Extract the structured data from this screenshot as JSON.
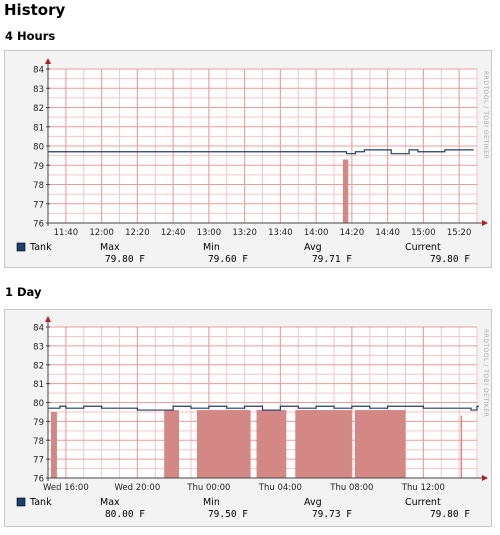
{
  "page": {
    "title": "History"
  },
  "graphs": [
    {
      "title": "4 Hours",
      "watermark": "RRDTOOL / TOBI OETIKER",
      "legend": {
        "series": "Tank",
        "color": "#1c3f6e"
      },
      "stats": {
        "max": {
          "label": "Max",
          "value": "79.80 F"
        },
        "min": {
          "label": "Min",
          "value": "79.60 F"
        },
        "avg": {
          "label": "Avg",
          "value": "79.71 F"
        },
        "current": {
          "label": "Current",
          "value": "79.80 F"
        }
      }
    },
    {
      "title": "1 Day",
      "watermark": "RRDTOOL / TOBI OETIKER",
      "legend": {
        "series": "Tank",
        "color": "#1c3f6e"
      },
      "stats": {
        "max": {
          "label": "Max",
          "value": "80.00 F"
        },
        "min": {
          "label": "Min",
          "value": "79.50 F"
        },
        "avg": {
          "label": "Avg",
          "value": "79.73 F"
        },
        "current": {
          "label": "Current",
          "value": "79.80 F"
        }
      }
    }
  ],
  "chart_data": [
    {
      "type": "line",
      "ylim": [
        76,
        84
      ],
      "y_ticks": [
        76,
        77,
        78,
        79,
        80,
        81,
        82,
        83,
        84
      ],
      "x_ticks": [
        "11:40",
        "12:00",
        "12:20",
        "12:40",
        "13:00",
        "13:20",
        "13:40",
        "14:00",
        "14:20",
        "14:40",
        "15:00",
        "15:20"
      ],
      "grid": true,
      "series": [
        {
          "name": "Tank",
          "color": "#1c3f6e",
          "x": [
            "11:30",
            "14:12",
            "14:17",
            "14:22",
            "14:27",
            "14:32",
            "14:42",
            "14:47",
            "14:52",
            "14:57",
            "15:02",
            "15:12",
            "15:27"
          ],
          "values": [
            79.7,
            79.7,
            79.6,
            79.7,
            79.8,
            79.8,
            79.6,
            79.6,
            79.8,
            79.7,
            79.7,
            79.8,
            79.8
          ]
        }
      ],
      "shaded_bars": [
        {
          "from": "14:15",
          "to": "14:18",
          "top": 79.3,
          "color": "#d48886"
        }
      ]
    },
    {
      "type": "line",
      "ylim": [
        76,
        84
      ],
      "y_ticks": [
        76,
        77,
        78,
        79,
        80,
        81,
        82,
        83,
        84
      ],
      "x_ticks": [
        "Wed 16:00",
        "Wed 20:00",
        "Thu 00:00",
        "Thu 04:00",
        "Thu 08:00",
        "Thu 12:00"
      ],
      "grid": true,
      "series": [
        {
          "name": "Tank",
          "color": "#1c3f6e",
          "x": [
            "Wed 15:00",
            "Wed 15:40",
            "Wed 16:00",
            "Wed 17:00",
            "Wed 18:00",
            "Wed 19:00",
            "Wed 20:00",
            "Wed 21:30",
            "Wed 22:00",
            "Wed 23:00",
            "Thu 00:00",
            "Thu 01:00",
            "Thu 02:00",
            "Thu 03:00",
            "Thu 04:00",
            "Thu 05:00",
            "Thu 06:00",
            "Thu 07:00",
            "Thu 08:00",
            "Thu 09:00",
            "Thu 10:00",
            "Thu 11:00",
            "Thu 12:00",
            "Thu 13:00",
            "Thu 14:00",
            "Thu 14:40",
            "Thu 15:00"
          ],
          "values": [
            79.7,
            79.8,
            79.7,
            79.8,
            79.7,
            79.7,
            79.6,
            79.6,
            79.8,
            79.7,
            79.8,
            79.7,
            79.8,
            79.6,
            79.8,
            79.7,
            79.8,
            79.7,
            79.8,
            79.7,
            79.8,
            79.8,
            79.7,
            79.7,
            79.7,
            79.6,
            79.8
          ]
        }
      ],
      "shaded_bars": [
        {
          "from": "Wed 15:10",
          "to": "Wed 15:30",
          "top": 79.5,
          "color": "#d48886"
        },
        {
          "from": "Wed 21:30",
          "to": "Wed 22:20",
          "top": 79.6,
          "color": "#d48886"
        },
        {
          "from": "Wed 23:20",
          "to": "Thu 02:20",
          "top": 79.6,
          "color": "#d48886"
        },
        {
          "from": "Thu 02:40",
          "to": "Thu 04:20",
          "top": 79.6,
          "color": "#d48886"
        },
        {
          "from": "Thu 04:50",
          "to": "Thu 08:00",
          "top": 79.6,
          "color": "#d48886"
        },
        {
          "from": "Thu 08:10",
          "to": "Thu 11:00",
          "top": 79.6,
          "color": "#d48886"
        },
        {
          "from": "Thu 14:05",
          "to": "Thu 14:10",
          "top": 79.3,
          "color": "#d48886"
        }
      ]
    }
  ]
}
